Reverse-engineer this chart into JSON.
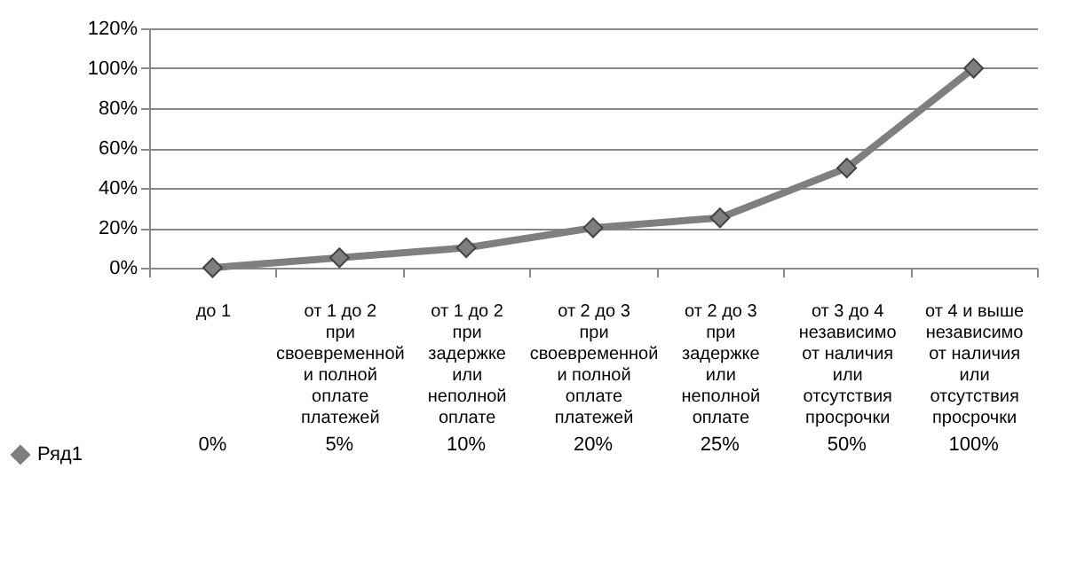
{
  "chart_data": {
    "type": "line",
    "categories": [
      "до 1",
      "от 1 до 2 при своевременной и полной оплате платежей",
      "от 1 до 2 при задержке или неполной оплате",
      "от 2 до 3 при своевременной и полной оплате платежей",
      "от 2 до 3 при задержке или неполной оплате",
      "от 3 до 4 независимо от наличия или отсутствия просрочки",
      "от 4 и выше независимо от наличия или отсутствия просрочки"
    ],
    "series": [
      {
        "name": "Ряд1",
        "color": "#7f7f7f",
        "values": [
          0,
          5,
          10,
          20,
          25,
          50,
          100
        ],
        "value_labels": [
          "0%",
          "5%",
          "10%",
          "20%",
          "25%",
          "50%",
          "100%"
        ]
      }
    ],
    "ylim": [
      0,
      120
    ],
    "yticks": [
      {
        "value": 0,
        "label": "0%"
      },
      {
        "value": 20,
        "label": "20%"
      },
      {
        "value": 40,
        "label": "40%"
      },
      {
        "value": 60,
        "label": "60%"
      },
      {
        "value": 80,
        "label": "80%"
      },
      {
        "value": 100,
        "label": "100%"
      },
      {
        "value": 120,
        "label": "120%"
      }
    ],
    "grid": "y",
    "legend": "bottom left",
    "marker": "diamond",
    "line_style": "solid"
  }
}
